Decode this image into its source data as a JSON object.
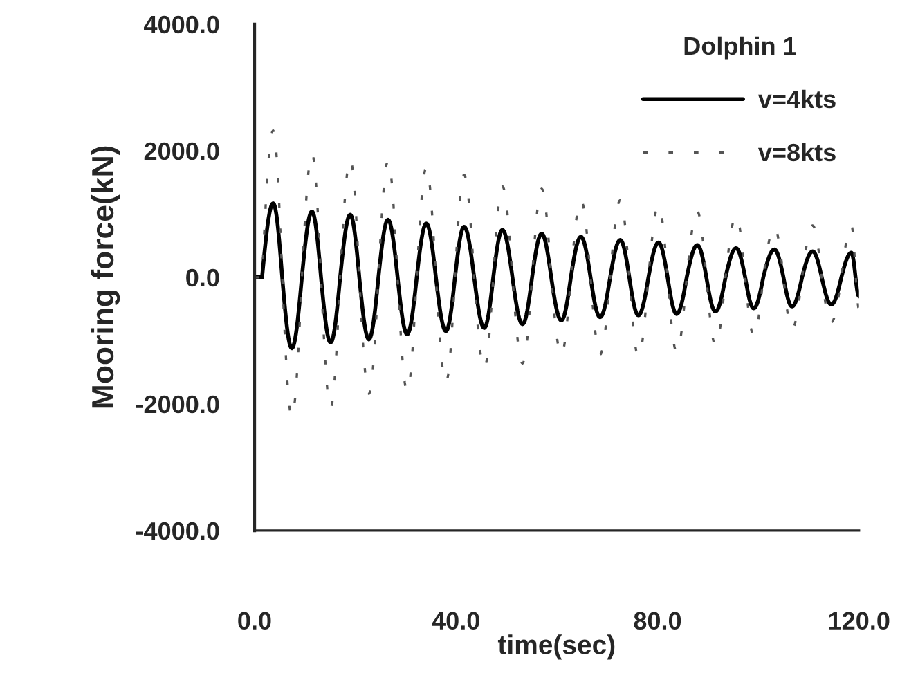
{
  "chart_data": {
    "type": "line",
    "legend_title": "Dolphin 1",
    "xlabel": "time(sec)",
    "ylabel": "Mooring force(kN)",
    "x": [
      0,
      1.5,
      3.7,
      5.5,
      7.4,
      9.4,
      11.4,
      13.2,
      15.1,
      17.0,
      19.0,
      20.8,
      22.7,
      24.6,
      26.5,
      28.4,
      30.3,
      32.2,
      34.1,
      36.0,
      38.0,
      39.8,
      41.6,
      43.6,
      45.6,
      47.4,
      49.2,
      51.2,
      53.2,
      55.1,
      57.0,
      58.9,
      60.9,
      62.8,
      64.8,
      66.7,
      68.6,
      70.6,
      72.6,
      74.4,
      76.2,
      78.2,
      80.2,
      82.0,
      83.8,
      85.8,
      87.9,
      89.7,
      91.5,
      93.5,
      95.6,
      97.4,
      99.1,
      101.0,
      103.2,
      105.0,
      106.7,
      108.7,
      110.8,
      112.6,
      114.5,
      116.5,
      118.5,
      120
    ],
    "series": [
      {
        "name": "v=4kts",
        "color": "#000000",
        "line_style": "solid",
        "values": [
          0,
          0,
          1170,
          0,
          -1120,
          0,
          1040,
          0,
          -1030,
          0,
          990,
          0,
          -980,
          0,
          910,
          0,
          -900,
          0,
          850,
          0,
          -850,
          0,
          800,
          0,
          -800,
          0,
          750,
          0,
          -740,
          0,
          690,
          0,
          -680,
          0,
          640,
          0,
          -630,
          0,
          590,
          0,
          -600,
          0,
          550,
          0,
          -580,
          0,
          510,
          0,
          -540,
          0,
          460,
          0,
          -490,
          0,
          440,
          0,
          -460,
          0,
          410,
          0,
          -430,
          0,
          390,
          -300
        ]
      },
      {
        "name": "v=8kts",
        "color": "#555555",
        "line_style": "dashed",
        "values": [
          0,
          0,
          2320,
          0,
          -2200,
          0,
          1950,
          0,
          -2060,
          0,
          1860,
          0,
          -1840,
          0,
          1840,
          0,
          -1800,
          0,
          1730,
          0,
          -1660,
          0,
          1620,
          0,
          -1440,
          0,
          1440,
          0,
          -1360,
          0,
          1400,
          0,
          -1220,
          0,
          1220,
          0,
          -1220,
          0,
          1220,
          0,
          -1250,
          0,
          1140,
          0,
          -1180,
          0,
          1040,
          0,
          -1070,
          0,
          970,
          0,
          -920,
          0,
          790,
          0,
          -820,
          0,
          820,
          0,
          -710,
          0,
          820,
          -500
        ]
      }
    ],
    "xlim": [
      0,
      120
    ],
    "xticks": [
      {
        "value": 0,
        "label": "0.0"
      },
      {
        "value": 40,
        "label": "40.0"
      },
      {
        "value": 80,
        "label": "80.0"
      },
      {
        "value": 120,
        "label": "120.0"
      }
    ],
    "ylim": [
      -4000,
      4000
    ],
    "yticks": [
      {
        "value": -4000,
        "label": "-4000.0"
      },
      {
        "value": -2000,
        "label": "-2000.0"
      },
      {
        "value": 0,
        "label": "0.0"
      },
      {
        "value": 2000,
        "label": "2000.0"
      },
      {
        "value": 4000,
        "label": "4000.0"
      }
    ],
    "legend": "top right",
    "grid": false
  }
}
